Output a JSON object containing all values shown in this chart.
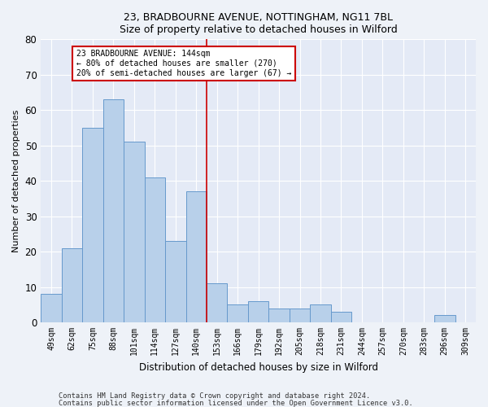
{
  "title1": "23, BRADBOURNE AVENUE, NOTTINGHAM, NG11 7BL",
  "title2": "Size of property relative to detached houses in Wilford",
  "xlabel": "Distribution of detached houses by size in Wilford",
  "ylabel": "Number of detached properties",
  "bar_labels": [
    "49sqm",
    "62sqm",
    "75sqm",
    "88sqm",
    "101sqm",
    "114sqm",
    "127sqm",
    "140sqm",
    "153sqm",
    "166sqm",
    "179sqm",
    "192sqm",
    "205sqm",
    "218sqm",
    "231sqm",
    "244sqm",
    "257sqm",
    "270sqm",
    "283sqm",
    "296sqm",
    "309sqm"
  ],
  "bar_values": [
    8,
    21,
    55,
    63,
    51,
    41,
    23,
    37,
    11,
    5,
    6,
    4,
    4,
    5,
    3,
    0,
    0,
    0,
    0,
    2,
    0
  ],
  "bar_color": "#b8d0ea",
  "bar_edge_color": "#6699cc",
  "vline_x": 7.5,
  "vline_color": "#cc0000",
  "annotation_text": "23 BRADBOURNE AVENUE: 144sqm\n← 80% of detached houses are smaller (270)\n20% of semi-detached houses are larger (67) →",
  "annotation_box_color": "#ffffff",
  "annotation_box_edge": "#cc0000",
  "ylim": [
    0,
    80
  ],
  "yticks": [
    0,
    10,
    20,
    30,
    40,
    50,
    60,
    70,
    80
  ],
  "footer1": "Contains HM Land Registry data © Crown copyright and database right 2024.",
  "footer2": "Contains public sector information licensed under the Open Government Licence v3.0.",
  "bg_color": "#eef2f8",
  "plot_bg_color": "#e4eaf6"
}
